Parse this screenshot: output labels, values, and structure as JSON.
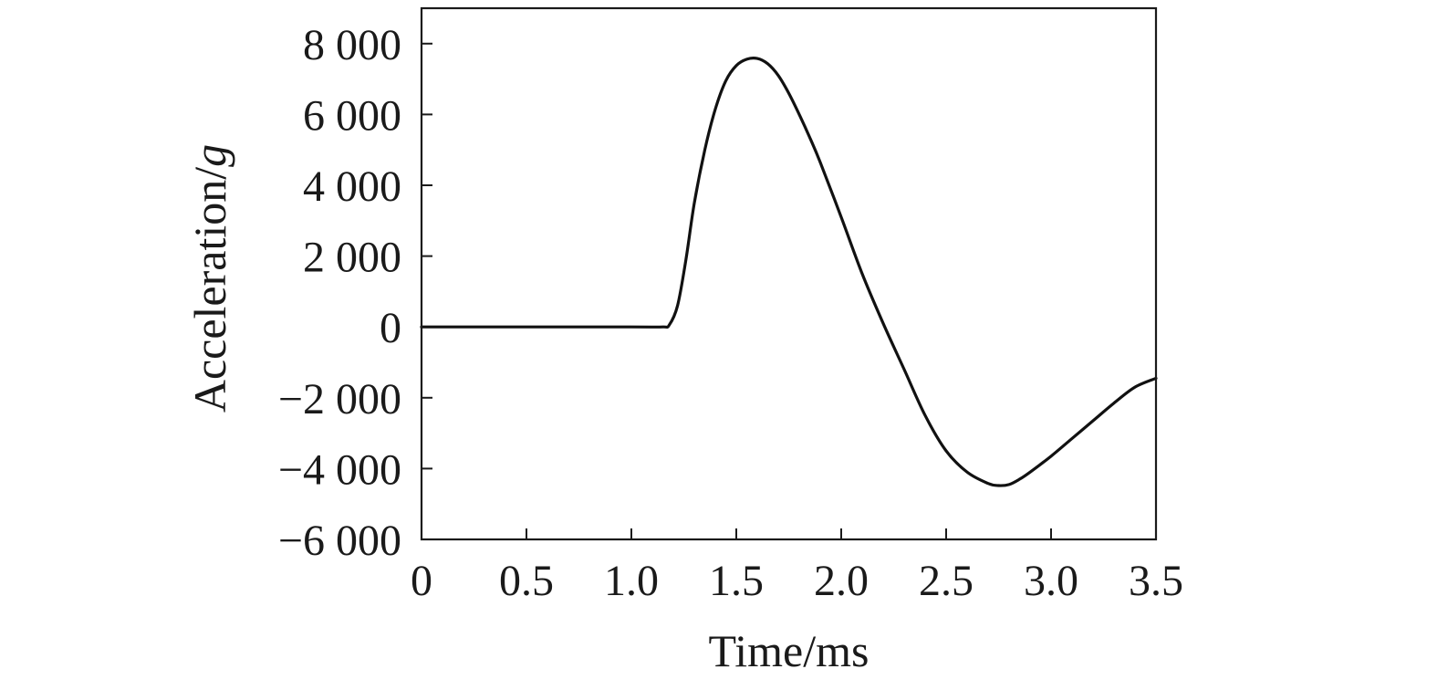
{
  "chart_data": {
    "type": "line",
    "title": "",
    "xlabel": "Time/ms",
    "ylabel_main": "Acceleration/",
    "ylabel_unit": "g",
    "xlim": [
      0,
      3.5
    ],
    "ylim": [
      -6000,
      9000
    ],
    "x_ticks": [
      0,
      0.5,
      1.0,
      1.5,
      2.0,
      2.5,
      3.0,
      3.5
    ],
    "x_tick_labels": [
      "0",
      "0.5",
      "1.0",
      "1.5",
      "2.0",
      "2.5",
      "3.0",
      "3.5"
    ],
    "y_ticks": [
      8000,
      6000,
      4000,
      2000,
      0,
      -2000,
      -4000,
      -6000
    ],
    "y_tick_labels": [
      "8 000",
      "6 000",
      "4 000",
      "2 000",
      "0",
      "−2 000",
      "−4 000",
      "−6 000"
    ],
    "grid": false,
    "legend": "none",
    "series": [
      {
        "color": "#111111",
        "x": [
          0,
          0.5,
          1.0,
          1.15,
          1.18,
          1.22,
          1.26,
          1.3,
          1.35,
          1.4,
          1.45,
          1.5,
          1.55,
          1.6,
          1.65,
          1.7,
          1.75,
          1.8,
          1.85,
          1.9,
          2.0,
          2.1,
          2.2,
          2.3,
          2.4,
          2.5,
          2.6,
          2.7,
          2.75,
          2.8,
          2.85,
          2.9,
          3.0,
          3.1,
          3.2,
          3.3,
          3.4,
          3.5
        ],
        "y": [
          0,
          0,
          0,
          0,
          50,
          600,
          1900,
          3500,
          5000,
          6150,
          6950,
          7380,
          7560,
          7580,
          7430,
          7100,
          6600,
          6000,
          5350,
          4650,
          3100,
          1500,
          100,
          -1200,
          -2500,
          -3500,
          -4100,
          -4420,
          -4480,
          -4450,
          -4300,
          -4100,
          -3650,
          -3150,
          -2650,
          -2150,
          -1700,
          -1450
        ]
      }
    ]
  }
}
